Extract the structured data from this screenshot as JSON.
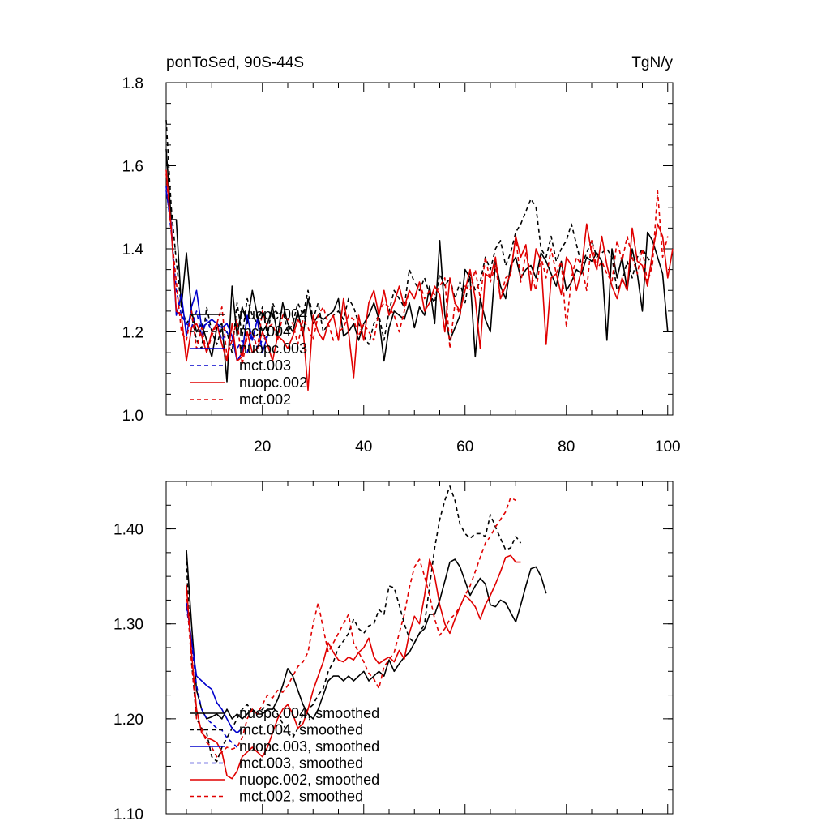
{
  "chart_data": [
    {
      "type": "line",
      "title_left": "ponToSed, 90S-44S",
      "title_right": "TgN/y",
      "xlim": [
        1,
        101
      ],
      "ylim": [
        1.0,
        1.8
      ],
      "xticks": [
        20,
        40,
        60,
        80,
        100
      ],
      "yticks": [
        1.0,
        1.2,
        1.4,
        1.6,
        1.8
      ],
      "ytick_labels": [
        "1.0",
        "1.2",
        "1.4",
        "1.6",
        "1.8"
      ],
      "series": [
        {
          "name": "nuopc.004",
          "color": "#000000",
          "dash": "solid",
          "x_start": 1,
          "values": [
            1.64,
            1.47,
            1.47,
            1.26,
            1.39,
            1.25,
            1.2,
            1.22,
            1.18,
            1.14,
            1.21,
            1.22,
            1.08,
            1.31,
            1.19,
            1.26,
            1.22,
            1.3,
            1.24,
            1.2,
            1.22,
            1.26,
            1.19,
            1.27,
            1.22,
            1.2,
            1.25,
            1.19,
            1.28,
            1.22,
            1.24,
            1.23,
            1.24,
            1.25,
            1.28,
            1.19,
            1.2,
            1.22,
            1.18,
            1.22,
            1.24,
            1.27,
            1.23,
            1.13,
            1.21,
            1.25,
            1.24,
            1.23,
            1.27,
            1.21,
            1.26,
            1.24,
            1.31,
            1.22,
            1.42,
            1.24,
            1.18,
            1.21,
            1.24,
            1.35,
            1.33,
            1.14,
            1.28,
            1.23,
            1.2,
            1.37,
            1.31,
            1.28,
            1.36,
            1.38,
            1.33,
            1.35,
            1.36,
            1.33,
            1.39,
            1.37,
            1.34,
            1.31,
            1.37,
            1.3,
            1.32,
            1.35,
            1.34,
            1.38,
            1.37,
            1.39,
            1.37,
            1.18,
            1.4,
            1.33,
            1.38,
            1.3,
            1.4,
            1.34,
            1.25,
            1.44,
            1.42,
            1.38,
            1.34,
            1.2
          ]
        },
        {
          "name": "mct.004",
          "color": "#000000",
          "dash": "dash",
          "x_start": 1,
          "values": [
            1.71,
            1.5,
            1.37,
            1.26,
            1.22,
            1.24,
            1.18,
            1.16,
            1.26,
            1.2,
            1.17,
            1.21,
            1.2,
            1.15,
            1.27,
            1.19,
            1.28,
            1.24,
            1.22,
            1.26,
            1.19,
            1.27,
            1.24,
            1.25,
            1.2,
            1.22,
            1.27,
            1.24,
            1.3,
            1.23,
            1.27,
            1.2,
            1.22,
            1.24,
            1.25,
            1.23,
            1.28,
            1.26,
            1.22,
            1.19,
            1.17,
            1.22,
            1.24,
            1.18,
            1.25,
            1.3,
            1.28,
            1.26,
            1.35,
            1.32,
            1.3,
            1.33,
            1.29,
            1.27,
            1.34,
            1.31,
            1.33,
            1.28,
            1.32,
            1.27,
            1.34,
            1.3,
            1.32,
            1.38,
            1.35,
            1.4,
            1.42,
            1.36,
            1.39,
            1.44,
            1.46,
            1.49,
            1.52,
            1.5,
            1.4,
            1.38,
            1.43,
            1.37,
            1.4,
            1.42,
            1.46,
            1.41,
            1.36,
            1.39,
            1.42,
            1.38,
            1.39,
            1.4,
            1.38,
            1.3,
            1.32,
            1.37,
            1.33,
            1.38,
            1.4,
            1.38,
            1.36
          ]
        },
        {
          "name": "nuopc.003",
          "color": "#0000cc",
          "dash": "solid",
          "x_start": 1,
          "values": [
            1.54,
            1.46,
            1.24,
            1.29,
            1.19,
            1.26,
            1.3,
            1.21,
            1.22,
            1.23,
            1.22,
            1.21,
            1.22,
            1.19,
            1.13,
            1.15,
            1.24,
            1.18,
            1.23,
            1.15,
            1.19
          ]
        },
        {
          "name": "mct.003",
          "color": "#0000cc",
          "dash": "dash",
          "x_start": 1,
          "values": [
            1.55,
            1.44,
            1.3,
            1.24,
            1.22,
            1.21,
            1.25,
            1.19,
            1.23,
            1.2,
            1.22,
            1.18,
            1.2,
            1.17,
            1.16,
            1.18,
            1.15,
            1.2,
            1.16,
            1.18,
            1.19
          ]
        },
        {
          "name": "nuopc.002",
          "color": "#e00000",
          "dash": "solid",
          "x_start": 1,
          "values": [
            1.59,
            1.45,
            1.25,
            1.24,
            1.13,
            1.21,
            1.22,
            1.19,
            1.15,
            1.2,
            1.22,
            1.17,
            1.13,
            1.22,
            1.13,
            1.14,
            1.2,
            1.15,
            1.16,
            1.2,
            1.17,
            1.13,
            1.19,
            1.18,
            1.16,
            1.19,
            1.23,
            1.21,
            1.06,
            1.24,
            1.2,
            1.18,
            1.22,
            1.24,
            1.18,
            1.28,
            1.2,
            1.09,
            1.24,
            1.18,
            1.27,
            1.3,
            1.24,
            1.3,
            1.24,
            1.27,
            1.31,
            1.26,
            1.3,
            1.28,
            1.32,
            1.25,
            1.27,
            1.31,
            1.29,
            1.2,
            1.33,
            1.27,
            1.25,
            1.3,
            1.35,
            1.28,
            1.16,
            1.34,
            1.33,
            1.38,
            1.28,
            1.31,
            1.34,
            1.43,
            1.38,
            1.41,
            1.3,
            1.4,
            1.37,
            1.17,
            1.33,
            1.34,
            1.29,
            1.38,
            1.36,
            1.3,
            1.35,
            1.46,
            1.39,
            1.35,
            1.43,
            1.36,
            1.31,
            1.28,
            1.33,
            1.3,
            1.45,
            1.37,
            1.36,
            1.31,
            1.39,
            1.46,
            1.43,
            1.33,
            1.4
          ]
        },
        {
          "name": "mct.002",
          "color": "#e00000",
          "dash": "dash",
          "x_start": 1,
          "values": [
            1.58,
            1.44,
            1.32,
            1.2,
            1.18,
            1.25,
            1.16,
            1.21,
            1.15,
            1.19,
            1.22,
            1.26,
            1.14,
            1.18,
            1.23,
            1.12,
            1.19,
            1.2,
            1.16,
            1.25,
            1.21,
            1.22,
            1.18,
            1.24,
            1.23,
            1.22,
            1.17,
            1.23,
            1.21,
            1.18,
            1.24,
            1.26,
            1.22,
            1.18,
            1.2,
            1.21,
            1.24,
            1.23,
            1.19,
            1.22,
            1.2,
            1.18,
            1.25,
            1.27,
            1.26,
            1.24,
            1.2,
            1.25,
            1.3,
            1.28,
            1.32,
            1.28,
            1.3,
            1.29,
            1.31,
            1.33,
            1.16,
            1.27,
            1.24,
            1.31,
            1.3,
            1.35,
            1.28,
            1.38,
            1.32,
            1.36,
            1.28,
            1.33,
            1.34,
            1.43,
            1.32,
            1.39,
            1.34,
            1.3,
            1.38,
            1.33,
            1.4,
            1.34,
            1.37,
            1.21,
            1.33,
            1.38,
            1.36,
            1.3,
            1.42,
            1.35,
            1.37,
            1.34,
            1.32,
            1.42,
            1.37,
            1.43,
            1.38,
            1.34,
            1.4,
            1.32,
            1.36,
            1.54,
            1.38,
            1.43
          ]
        }
      ],
      "legend": {
        "placement": "bottom-left",
        "entries": [
          "nuopc.004",
          "mct.004",
          "nuopc.003",
          "mct.003",
          "nuopc.002",
          "mct.002"
        ]
      }
    },
    {
      "type": "line",
      "title_left": "",
      "title_right": "",
      "xlim": [
        1,
        101
      ],
      "ylim": [
        1.1,
        1.45
      ],
      "xticks": [
        20,
        40,
        60,
        80,
        100
      ],
      "yticks": [
        1.1,
        1.2,
        1.3,
        1.4
      ],
      "ytick_labels": [
        "1.10",
        "1.20",
        "1.30",
        "1.40"
      ],
      "series": [
        {
          "name": "nuopc.004, smoothed",
          "color": "#000000",
          "dash": "solid",
          "x_start": 5,
          "values": [
            1.378,
            1.3,
            1.23,
            1.21,
            1.2,
            1.202,
            1.205,
            1.2,
            1.21,
            1.2,
            1.205,
            1.2,
            1.205,
            1.21,
            1.205,
            1.205,
            1.21,
            1.21,
            1.22,
            1.235,
            1.253,
            1.245,
            1.23,
            1.215,
            1.205,
            1.2,
            1.21,
            1.225,
            1.24,
            1.245,
            1.245,
            1.24,
            1.245,
            1.24,
            1.245,
            1.25,
            1.24,
            1.245,
            1.25,
            1.245,
            1.262,
            1.25,
            1.258,
            1.265,
            1.27,
            1.28,
            1.29,
            1.295,
            1.31,
            1.31,
            1.325,
            1.345,
            1.365,
            1.368,
            1.36,
            1.345,
            1.33,
            1.34,
            1.348,
            1.342,
            1.32,
            1.318,
            1.325,
            1.322,
            1.312,
            1.302,
            1.32,
            1.34,
            1.358,
            1.36,
            1.35,
            1.332
          ]
        },
        {
          "name": "mct.004, smoothed",
          "color": "#000000",
          "dash": "dash",
          "x_start": 5,
          "values": [
            1.366,
            1.26,
            1.2,
            1.19,
            1.185,
            1.16,
            1.155,
            1.17,
            1.18,
            1.19,
            1.2,
            1.21,
            1.215,
            1.208,
            1.205,
            1.21,
            1.215,
            1.213,
            1.205,
            1.195,
            1.185,
            1.18,
            1.19,
            1.205,
            1.21,
            1.215,
            1.225,
            1.232,
            1.25,
            1.26,
            1.275,
            1.282,
            1.29,
            1.305,
            1.295,
            1.29,
            1.298,
            1.3,
            1.315,
            1.31,
            1.34,
            1.338,
            1.32,
            1.3,
            1.285,
            1.28,
            1.29,
            1.3,
            1.34,
            1.38,
            1.41,
            1.43,
            1.445,
            1.43,
            1.405,
            1.395,
            1.39,
            1.395,
            1.395,
            1.392,
            1.415,
            1.402,
            1.39,
            1.378,
            1.38,
            1.392,
            1.385
          ]
        },
        {
          "name": "nuopc.003, smoothed",
          "color": "#0000cc",
          "dash": "solid",
          "x_start": 5,
          "values": [
            1.322,
            1.283,
            1.245,
            1.24,
            1.235,
            1.231,
            1.217,
            1.21,
            1.2,
            1.19,
            1.185,
            1.19
          ]
        },
        {
          "name": "mct.003, smoothed",
          "color": "#0000cc",
          "dash": "dash",
          "x_start": 5,
          "values": [
            1.318,
            1.28,
            1.235,
            1.21,
            1.2,
            1.195,
            1.19,
            1.188,
            1.18,
            1.175,
            1.17
          ]
        },
        {
          "name": "nuopc.002, smoothed",
          "color": "#e00000",
          "dash": "solid",
          "x_start": 5,
          "values": [
            1.341,
            1.27,
            1.21,
            1.185,
            1.18,
            1.178,
            1.175,
            1.165,
            1.14,
            1.137,
            1.145,
            1.16,
            1.165,
            1.17,
            1.165,
            1.16,
            1.17,
            1.185,
            1.2,
            1.21,
            1.215,
            1.205,
            1.19,
            1.195,
            1.21,
            1.23,
            1.245,
            1.26,
            1.28,
            1.27,
            1.262,
            1.26,
            1.265,
            1.262,
            1.27,
            1.275,
            1.285,
            1.265,
            1.258,
            1.262,
            1.265,
            1.26,
            1.272,
            1.263,
            1.29,
            1.308,
            1.3,
            1.33,
            1.368,
            1.35,
            1.32,
            1.3,
            1.29,
            1.305,
            1.318,
            1.33,
            1.325,
            1.318,
            1.305,
            1.32,
            1.33,
            1.342,
            1.355,
            1.37,
            1.372,
            1.365,
            1.365
          ]
        },
        {
          "name": "mct.002, smoothed",
          "color": "#e00000",
          "dash": "dash",
          "x_start": 5,
          "values": [
            1.334,
            1.26,
            1.2,
            1.19,
            1.175,
            1.17,
            1.16,
            1.165,
            1.17,
            1.168,
            1.17,
            1.18,
            1.2,
            1.21,
            1.205,
            1.215,
            1.225,
            1.222,
            1.23,
            1.228,
            1.235,
            1.245,
            1.255,
            1.26,
            1.27,
            1.3,
            1.322,
            1.295,
            1.27,
            1.28,
            1.29,
            1.3,
            1.31,
            1.28,
            1.27,
            1.26,
            1.248,
            1.242,
            1.232,
            1.255,
            1.262,
            1.27,
            1.29,
            1.31,
            1.338,
            1.36,
            1.368,
            1.35,
            1.33,
            1.305,
            1.288,
            1.295,
            1.305,
            1.31,
            1.318,
            1.33,
            1.34,
            1.355,
            1.37,
            1.385,
            1.392,
            1.402,
            1.41,
            1.418,
            1.433,
            1.43
          ]
        }
      ],
      "legend": {
        "placement": "bottom-left",
        "entries": [
          "nuopc.004, smoothed",
          "mct.004, smoothed",
          "nuopc.003, smoothed",
          "mct.003, smoothed",
          "nuopc.002, smoothed",
          "mct.002, smoothed"
        ]
      }
    }
  ]
}
